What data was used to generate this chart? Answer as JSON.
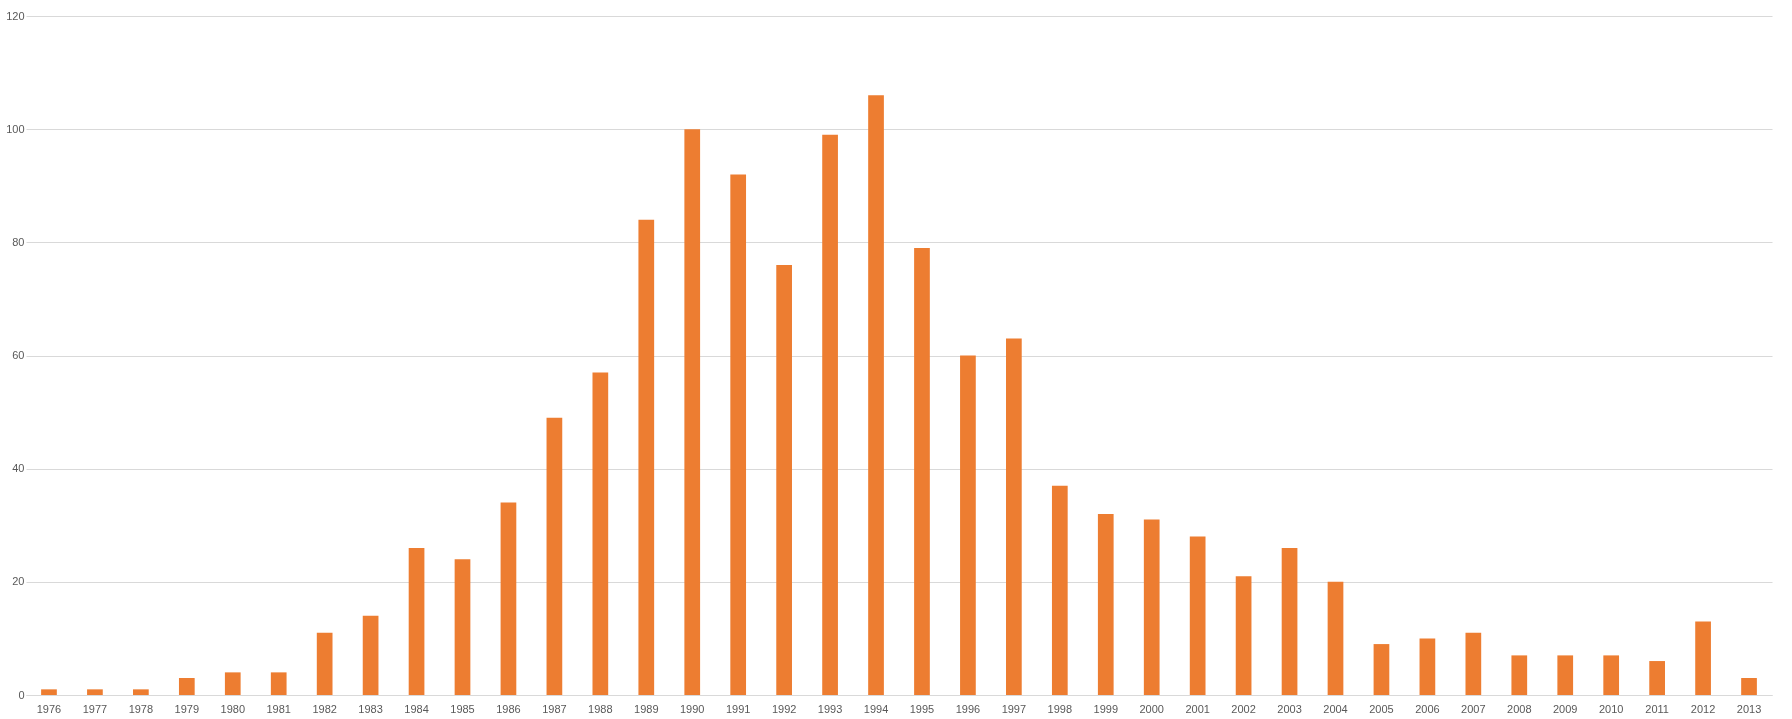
{
  "chart_data": {
    "type": "bar",
    "categories": [
      "1976",
      "1977",
      "1978",
      "1979",
      "1980",
      "1981",
      "1982",
      "1983",
      "1984",
      "1985",
      "1986",
      "1987",
      "1988",
      "1989",
      "1990",
      "1991",
      "1992",
      "1993",
      "1994",
      "1995",
      "1996",
      "1997",
      "1998",
      "1999",
      "2000",
      "2001",
      "2002",
      "2003",
      "2004",
      "2005",
      "2006",
      "2007",
      "2008",
      "2009",
      "2010",
      "2011",
      "2012",
      "2013"
    ],
    "values": [
      1,
      1,
      1,
      3,
      4,
      4,
      11,
      14,
      26,
      24,
      34,
      49,
      57,
      84,
      100,
      92,
      76,
      99,
      106,
      79,
      60,
      63,
      37,
      32,
      31,
      28,
      21,
      26,
      20,
      9,
      10,
      11,
      7,
      7,
      7,
      6,
      13,
      3
    ],
    "color": "#ed7d31",
    "ylim": [
      0,
      120
    ],
    "yticks": [
      0,
      20,
      40,
      60,
      80,
      100,
      120
    ],
    "grid": "y"
  }
}
